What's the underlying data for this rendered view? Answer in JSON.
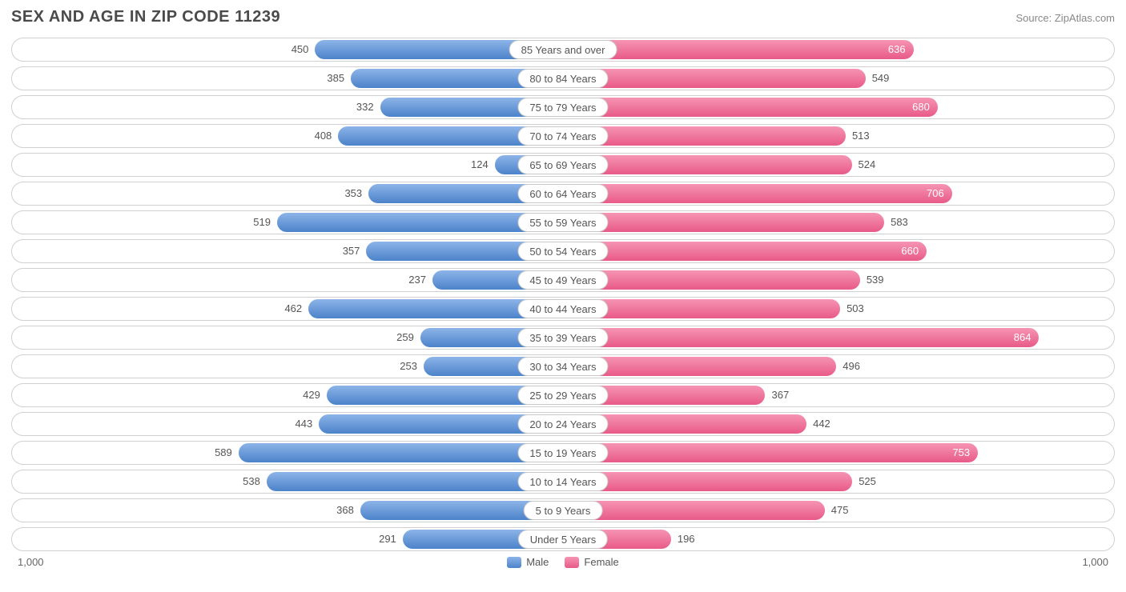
{
  "title": "SEX AND AGE IN ZIP CODE 11239",
  "source": "Source: ZipAtlas.com",
  "chart": {
    "type": "population-pyramid",
    "max_value": 1000,
    "axis_left": "1,000",
    "axis_right": "1,000",
    "inside_threshold": 600,
    "colors": {
      "male": "#6a9bd8",
      "female": "#ed7ba0",
      "row_border": "#d0d0d0",
      "background": "#ffffff",
      "text": "#555555"
    },
    "legend": {
      "male": "Male",
      "female": "Female"
    },
    "categories": [
      {
        "label": "85 Years and over",
        "male": 450,
        "female": 636
      },
      {
        "label": "80 to 84 Years",
        "male": 385,
        "female": 549
      },
      {
        "label": "75 to 79 Years",
        "male": 332,
        "female": 680
      },
      {
        "label": "70 to 74 Years",
        "male": 408,
        "female": 513
      },
      {
        "label": "65 to 69 Years",
        "male": 124,
        "female": 524
      },
      {
        "label": "60 to 64 Years",
        "male": 353,
        "female": 706
      },
      {
        "label": "55 to 59 Years",
        "male": 519,
        "female": 583
      },
      {
        "label": "50 to 54 Years",
        "male": 357,
        "female": 660
      },
      {
        "label": "45 to 49 Years",
        "male": 237,
        "female": 539
      },
      {
        "label": "40 to 44 Years",
        "male": 462,
        "female": 503
      },
      {
        "label": "35 to 39 Years",
        "male": 259,
        "female": 864
      },
      {
        "label": "30 to 34 Years",
        "male": 253,
        "female": 496
      },
      {
        "label": "25 to 29 Years",
        "male": 429,
        "female": 367
      },
      {
        "label": "20 to 24 Years",
        "male": 443,
        "female": 442
      },
      {
        "label": "15 to 19 Years",
        "male": 589,
        "female": 753
      },
      {
        "label": "10 to 14 Years",
        "male": 538,
        "female": 525
      },
      {
        "label": "5 to 9 Years",
        "male": 368,
        "female": 475
      },
      {
        "label": "Under 5 Years",
        "male": 291,
        "female": 196
      }
    ]
  }
}
